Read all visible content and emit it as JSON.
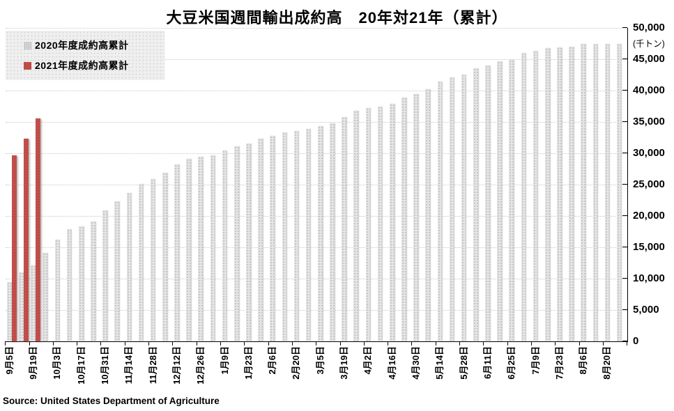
{
  "page": {
    "title": "大豆米国週間輸出成約高　20年対21年（累計）",
    "source": "Source: United States Department of Agriculture"
  },
  "legend": {
    "items": [
      {
        "label": "2020年度成約高累計",
        "style": "dotted-gray",
        "color": "#dcdcdc"
      },
      {
        "label": "2021年度成約高累計",
        "style": "solid-red",
        "color": "#bf4b47"
      }
    ]
  },
  "chart_data": {
    "type": "bar",
    "title": "大豆米国週間輸出成約高　20年対21年（累計）",
    "unit_label": "(千トン)",
    "ylabel": "",
    "xlabel": "",
    "ylim": [
      0,
      50000
    ],
    "y_tick_interval": 5000,
    "y_tick_labels": [
      "0",
      "5,000",
      "10,000",
      "15,000",
      "20,000",
      "25,000",
      "30,000",
      "35,000",
      "40,000",
      "45,000",
      "50,000"
    ],
    "grid": true,
    "legend_position": "top-left",
    "x_label_every": 2,
    "x_tick_labels": [
      "9月5日",
      "9月19日",
      "10月3日",
      "10月17日",
      "10月31日",
      "11月14日",
      "11月28日",
      "12月12日",
      "12月26日",
      "1月9日",
      "1月23日",
      "2月6日",
      "2月20日",
      "3月5日",
      "3月19日",
      "4月2日",
      "4月16日",
      "4月30日",
      "5月14日",
      "5月28日",
      "6月11日",
      "6月25日",
      "7月9日",
      "7月23日",
      "8月6日",
      "8月20日"
    ],
    "series": [
      {
        "name": "2020年度成約高累計",
        "color": "#e4e4e4",
        "values": [
          9400,
          11000,
          12100,
          14100,
          16200,
          17900,
          18300,
          19100,
          20900,
          22300,
          23700,
          25100,
          25900,
          26900,
          28200,
          29100,
          29400,
          29700,
          30400,
          31100,
          31600,
          32300,
          32800,
          33300,
          33600,
          33900,
          34300,
          34800,
          35800,
          36800,
          37200,
          37500,
          37900,
          38900,
          39500,
          40200,
          41400,
          42100,
          42600,
          43600,
          44000,
          44700,
          44900,
          46000,
          46300,
          46800,
          46900,
          47000,
          47500,
          47500,
          47500,
          47500
        ]
      },
      {
        "name": "2021年度成約高累計",
        "color": "#bf4b47",
        "values": [
          29700,
          32300,
          35600
        ]
      }
    ]
  }
}
